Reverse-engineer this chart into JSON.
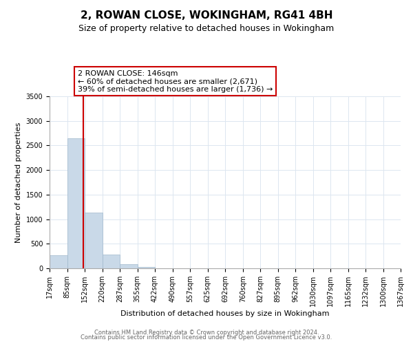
{
  "title": "2, ROWAN CLOSE, WOKINGHAM, RG41 4BH",
  "subtitle": "Size of property relative to detached houses in Wokingham",
  "xlabel": "Distribution of detached houses by size in Wokingham",
  "ylabel": "Number of detached properties",
  "bin_labels": [
    "17sqm",
    "85sqm",
    "152sqm",
    "220sqm",
    "287sqm",
    "355sqm",
    "422sqm",
    "490sqm",
    "557sqm",
    "625sqm",
    "692sqm",
    "760sqm",
    "827sqm",
    "895sqm",
    "962sqm",
    "1030sqm",
    "1097sqm",
    "1165sqm",
    "1232sqm",
    "1300sqm",
    "1367sqm"
  ],
  "bar_heights": [
    270,
    2650,
    1140,
    280,
    90,
    35,
    0,
    0,
    0,
    0,
    0,
    0,
    0,
    0,
    0,
    0,
    0,
    0,
    0,
    0
  ],
  "bar_color": "#c9d9e8",
  "bar_edge_color": "#a0b8cc",
  "ylim": [
    0,
    3500
  ],
  "yticks": [
    0,
    500,
    1000,
    1500,
    2000,
    2500,
    3000,
    3500
  ],
  "property_line_x": 146,
  "property_line_label": "2 ROWAN CLOSE: 146sqm",
  "annotation_line1": "← 60% of detached houses are smaller (2,671)",
  "annotation_line2": "39% of semi-detached houses are larger (1,736) →",
  "bin_edges": [
    17,
    85,
    152,
    220,
    287,
    355,
    422,
    490,
    557,
    625,
    692,
    760,
    827,
    895,
    962,
    1030,
    1097,
    1165,
    1232,
    1300,
    1367
  ],
  "footnote1": "Contains HM Land Registry data © Crown copyright and database right 2024.",
  "footnote2": "Contains public sector information licensed under the Open Government Licence v3.0.",
  "background_color": "#ffffff",
  "grid_color": "#dce6f0",
  "line_color": "#cc0000",
  "box_edge_color": "#cc0000",
  "title_fontsize": 11,
  "subtitle_fontsize": 9,
  "axis_label_fontsize": 8,
  "tick_fontsize": 7,
  "annotation_fontsize": 8,
  "footnote_fontsize": 6
}
